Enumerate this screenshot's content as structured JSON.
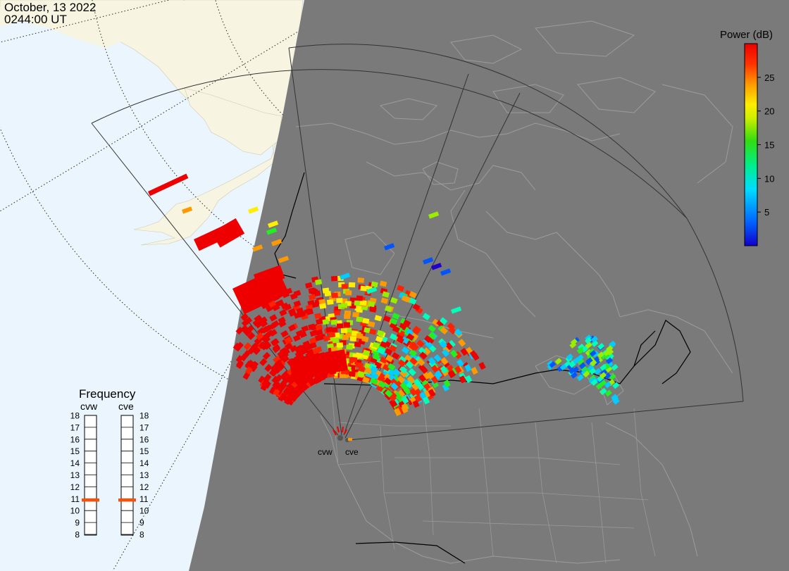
{
  "timestamp": {
    "date": "October, 13 2022",
    "time": "0244:00 UT"
  },
  "colorbar": {
    "title": "Power (dB)",
    "ticks": [
      "25",
      "20",
      "15",
      "10",
      "5"
    ],
    "tick_values": [
      25,
      20,
      15,
      10,
      5
    ],
    "range": [
      0,
      30
    ]
  },
  "frequency_panel": {
    "title": "Frequency",
    "radars": [
      {
        "name": "cvw",
        "frequency_mhz": 10.9
      },
      {
        "name": "cve",
        "frequency_mhz": 10.9
      }
    ],
    "scale": [
      "18",
      "17",
      "16",
      "15",
      "14",
      "13",
      "12",
      "11",
      "10",
      "9",
      "8"
    ],
    "marker_color": "#ee5511"
  },
  "radar_site_labels": [
    "cvw",
    "cve"
  ],
  "colors": {
    "ocean": "#eaf5fd",
    "land_day": "#f7f5e2",
    "night": "#7a7a7a",
    "night_outline": "#9a9a9a",
    "colorscale": [
      "#2200cc",
      "#0055ff",
      "#00ccff",
      "#00ffbb",
      "#22ee22",
      "#99ee00",
      "#ffee00",
      "#ff9900",
      "#ff2200",
      "#ee0000"
    ]
  }
}
